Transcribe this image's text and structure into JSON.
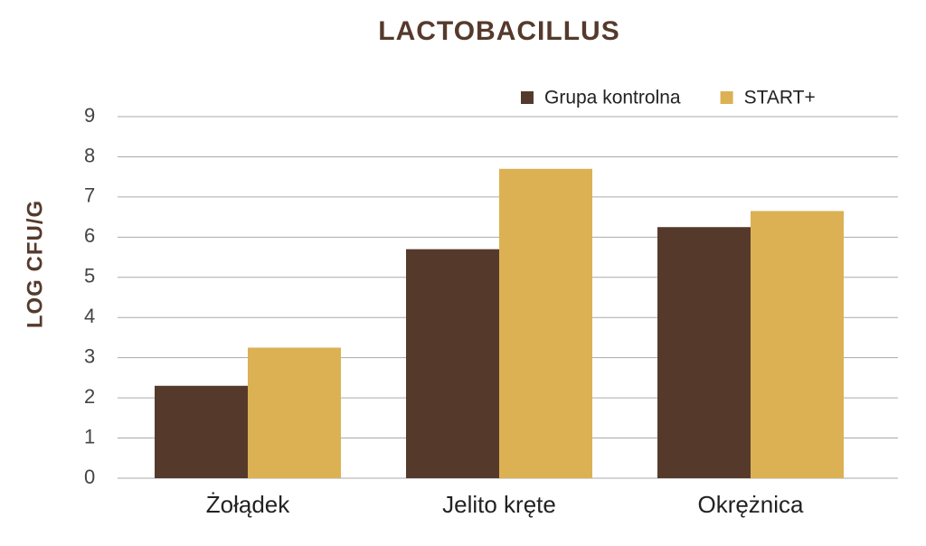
{
  "chart_data": {
    "type": "bar",
    "title": "LACTOBACILLUS",
    "y_label": "LOG CFU/G",
    "categories": [
      "Żołądek",
      "Jelito kręte",
      "Okrężnica"
    ],
    "series": [
      {
        "name": "Grupa kontrolna",
        "color": "#553a2c",
        "values": [
          2.3,
          5.7,
          6.25
        ]
      },
      {
        "name": "START+",
        "color": "#dbb154",
        "values": [
          3.25,
          7.7,
          6.65
        ]
      }
    ],
    "ylim": [
      0,
      9
    ],
    "yticks": [
      0,
      1,
      2,
      3,
      4,
      5,
      6,
      7,
      8,
      9
    ],
    "grid": true,
    "legend": "top-right"
  }
}
